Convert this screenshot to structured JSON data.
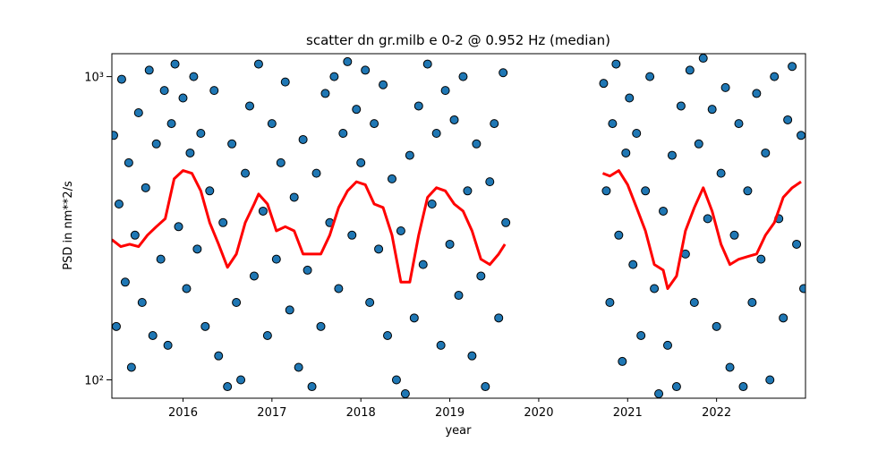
{
  "chart_data": {
    "type": "scatter",
    "title": "scatter dn gr.milb e 0-2 @ 0.952 Hz (median)",
    "x_label": "year",
    "y_label": "PSD in nm**2/s",
    "log_y": true,
    "color": "#1f77b4",
    "xlim": [
      2015.2,
      2023.0
    ],
    "ylim": [
      87,
      1190
    ],
    "xticks": [
      2016,
      2017,
      2018,
      2019,
      2020,
      2021,
      2022
    ],
    "yticks": [
      {
        "value": 100,
        "label": "10²"
      },
      {
        "value": 1000,
        "label": "10³"
      }
    ],
    "x": [
      2015.22,
      2015.25,
      2015.28,
      2015.31,
      2015.35,
      2015.39,
      2015.42,
      2015.46,
      2015.5,
      2015.54,
      2015.58,
      2015.62,
      2015.66,
      2015.7,
      2015.75,
      2015.79,
      2015.83,
      2015.87,
      2015.91,
      2015.95,
      2016.0,
      2016.04,
      2016.08,
      2016.12,
      2016.16,
      2016.2,
      2016.25,
      2016.3,
      2016.35,
      2016.4,
      2016.45,
      2016.5,
      2016.55,
      2016.6,
      2016.65,
      2016.7,
      2016.75,
      2016.8,
      2016.85,
      2016.9,
      2016.95,
      2017.0,
      2017.05,
      2017.1,
      2017.15,
      2017.2,
      2017.25,
      2017.3,
      2017.35,
      2017.4,
      2017.45,
      2017.5,
      2017.55,
      2017.6,
      2017.65,
      2017.7,
      2017.75,
      2017.8,
      2017.85,
      2017.9,
      2017.95,
      2018.0,
      2018.05,
      2018.1,
      2018.15,
      2018.2,
      2018.25,
      2018.3,
      2018.35,
      2018.4,
      2018.45,
      2018.5,
      2018.55,
      2018.6,
      2018.65,
      2018.7,
      2018.75,
      2018.8,
      2018.85,
      2018.9,
      2018.95,
      2019.0,
      2019.05,
      2019.1,
      2019.15,
      2019.2,
      2019.25,
      2019.3,
      2019.35,
      2019.4,
      2019.45,
      2019.5,
      2019.55,
      2019.6,
      2019.63,
      2020.73,
      2020.76,
      2020.8,
      2020.83,
      2020.87,
      2020.9,
      2020.94,
      2020.98,
      2021.02,
      2021.06,
      2021.1,
      2021.15,
      2021.2,
      2021.25,
      2021.3,
      2021.35,
      2021.4,
      2021.45,
      2021.5,
      2021.55,
      2021.6,
      2021.65,
      2021.7,
      2021.75,
      2021.8,
      2021.85,
      2021.9,
      2021.95,
      2022.0,
      2022.05,
      2022.1,
      2022.15,
      2022.2,
      2022.25,
      2022.3,
      2022.35,
      2022.4,
      2022.45,
      2022.5,
      2022.55,
      2022.6,
      2022.65,
      2022.7,
      2022.75,
      2022.8,
      2022.85,
      2022.9,
      2022.95,
      2022.98
    ],
    "values": [
      640,
      150,
      380,
      980,
      210,
      520,
      110,
      300,
      760,
      180,
      430,
      1050,
      140,
      600,
      250,
      900,
      130,
      700,
      1100,
      320,
      850,
      200,
      560,
      1000,
      270,
      650,
      150,
      420,
      900,
      120,
      330,
      95,
      600,
      180,
      100,
      480,
      800,
      220,
      1100,
      360,
      140,
      700,
      250,
      520,
      960,
      170,
      400,
      110,
      620,
      230,
      95,
      480,
      150,
      880,
      330,
      1000,
      200,
      650,
      1120,
      300,
      780,
      520,
      1050,
      180,
      700,
      270,
      940,
      140,
      460,
      100,
      310,
      90,
      550,
      160,
      800,
      240,
      1100,
      380,
      650,
      130,
      900,
      280,
      720,
      190,
      1000,
      420,
      120,
      600,
      220,
      95,
      450,
      700,
      160,
      1030,
      330,
      950,
      420,
      180,
      700,
      1100,
      300,
      115,
      560,
      850,
      240,
      650,
      140,
      420,
      1000,
      200,
      90,
      360,
      130,
      550,
      95,
      800,
      260,
      1050,
      180,
      600,
      1150,
      340,
      780,
      150,
      480,
      920,
      110,
      300,
      700,
      95,
      420,
      180,
      880,
      250,
      560,
      100,
      1000,
      340,
      160,
      720,
      1080,
      280,
      640,
      200
    ],
    "line": {
      "color": "#ff0000",
      "x": [
        2015.2,
        2015.3,
        2015.4,
        2015.5,
        2015.6,
        2015.7,
        2015.8,
        2015.9,
        2016.0,
        2016.1,
        2016.2,
        2016.3,
        2016.4,
        2016.5,
        2016.6,
        2016.7,
        2016.8,
        2016.85,
        2016.95,
        2017.05,
        2017.15,
        2017.25,
        2017.35,
        2017.45,
        2017.55,
        2017.65,
        2017.75,
        2017.85,
        2017.95,
        2018.05,
        2018.15,
        2018.25,
        2018.35,
        2018.45,
        2018.55,
        2018.65,
        2018.75,
        2018.85,
        2018.95,
        2019.05,
        2019.15,
        2019.25,
        2019.35,
        2019.45,
        2019.55,
        2019.62,
        null,
        2020.72,
        2020.8,
        2020.9,
        2021.0,
        2021.1,
        2021.2,
        2021.3,
        2021.4,
        2021.45,
        2021.55,
        2021.65,
        2021.75,
        2021.85,
        2021.95,
        2022.05,
        2022.15,
        2022.25,
        2022.35,
        2022.45,
        2022.55,
        2022.65,
        2022.75,
        2022.85,
        2022.95
      ],
      "values": [
        290,
        275,
        280,
        275,
        300,
        320,
        340,
        460,
        490,
        480,
        420,
        330,
        280,
        235,
        260,
        330,
        380,
        410,
        380,
        310,
        320,
        310,
        260,
        260,
        260,
        300,
        370,
        420,
        450,
        440,
        380,
        370,
        300,
        210,
        210,
        300,
        400,
        430,
        420,
        380,
        360,
        310,
        250,
        240,
        260,
        280,
        null,
        480,
        470,
        490,
        440,
        370,
        310,
        240,
        230,
        200,
        220,
        310,
        370,
        430,
        360,
        280,
        240,
        250,
        255,
        260,
        300,
        330,
        400,
        430,
        450
      ]
    }
  }
}
